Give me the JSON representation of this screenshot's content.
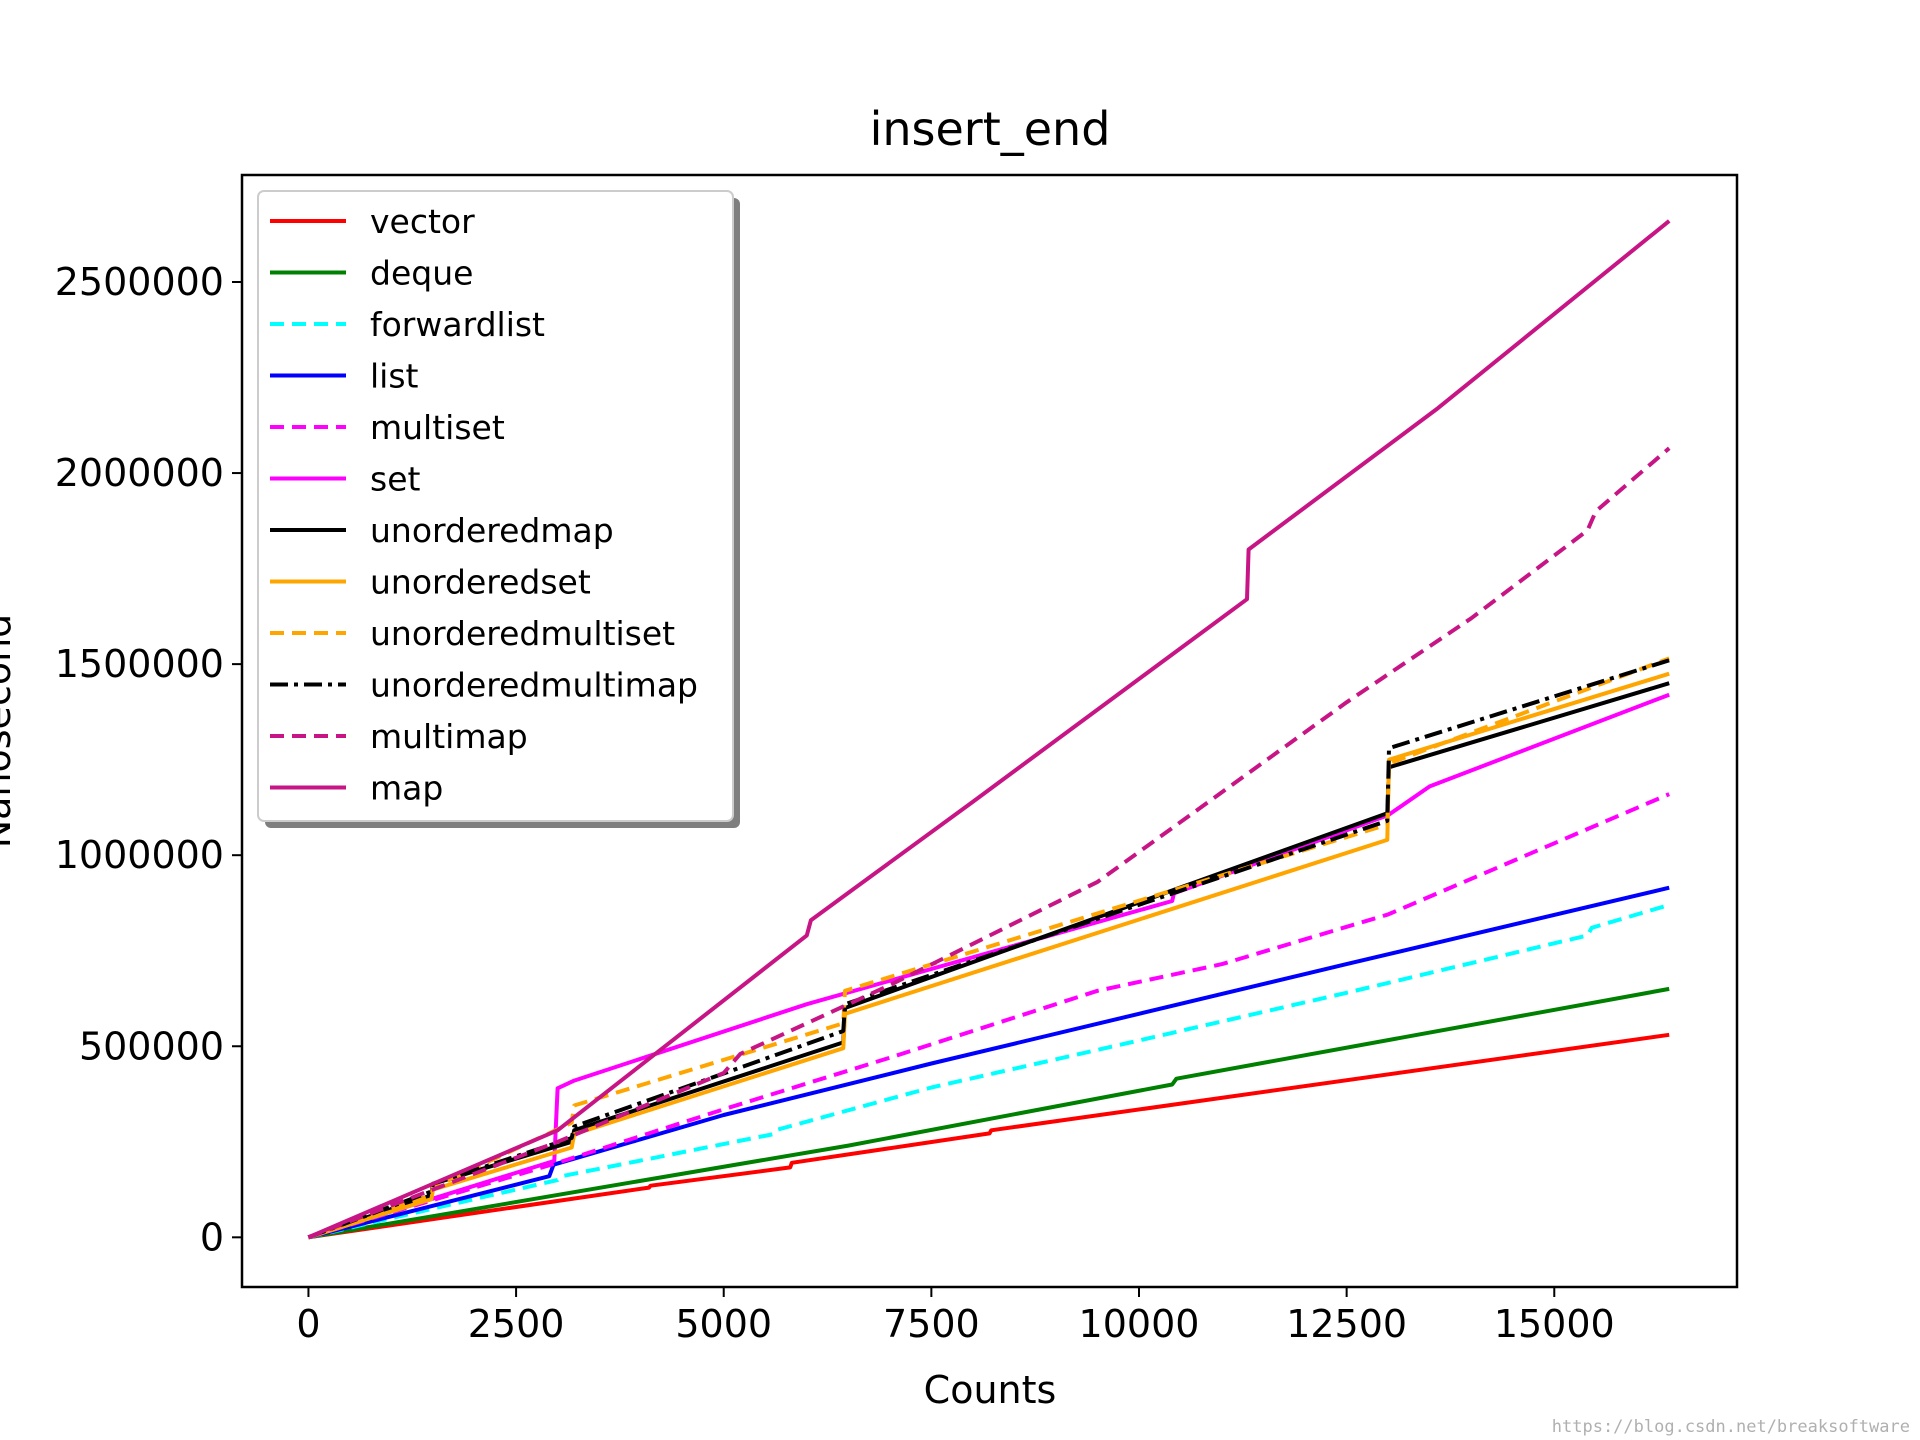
{
  "colors": {
    "background": "#ffffff",
    "axes": "#000000",
    "legend_frame": "#cccccc",
    "legend_shadow": "#7f7f7f",
    "watermark": "#b0b0b0"
  },
  "chart_data": {
    "type": "line",
    "title": "insert_end",
    "xlabel": "Counts",
    "ylabel": "Nanosecond",
    "xlim": [
      -800,
      17200
    ],
    "ylim": [
      -130000,
      2780000
    ],
    "xticks": [
      0,
      2500,
      5000,
      7500,
      10000,
      12500,
      15000
    ],
    "yticks": [
      0,
      500000,
      1000000,
      1500000,
      2000000,
      2500000
    ],
    "xtick_labels": [
      "0",
      "2500",
      "5000",
      "7500",
      "10000",
      "12500",
      "15000"
    ],
    "ytick_labels": [
      "0",
      "500000",
      "1000000",
      "1500000",
      "2000000",
      "2500000"
    ],
    "grid": false,
    "legend_position": "upper-left",
    "series": [
      {
        "name": "vector",
        "color": "#ff0000",
        "style": "solid",
        "x": [
          0,
          4100,
          4120,
          5800,
          5820,
          8200,
          8220,
          16384
        ],
        "y": [
          0,
          130000,
          135000,
          183000,
          195000,
          272000,
          280000,
          530000
        ]
      },
      {
        "name": "deque",
        "color": "#008000",
        "style": "solid",
        "x": [
          0,
          6500,
          10400,
          10450,
          16384
        ],
        "y": [
          0,
          240000,
          400000,
          415000,
          650000
        ]
      },
      {
        "name": "forwardlist",
        "color": "#00ffff",
        "style": "dashed",
        "x": [
          0,
          3000,
          3050,
          5600,
          5650,
          7500,
          10000,
          12500,
          15400,
          15450,
          16384
        ],
        "y": [
          0,
          150000,
          160000,
          270000,
          282000,
          392000,
          515000,
          640000,
          790000,
          810000,
          870000
        ]
      },
      {
        "name": "list",
        "color": "#0000ff",
        "style": "solid",
        "x": [
          0,
          2900,
          2950,
          5000,
          7500,
          10000,
          12500,
          16384
        ],
        "y": [
          0,
          160000,
          190000,
          320000,
          455000,
          585000,
          715000,
          915000
        ]
      },
      {
        "name": "multiset",
        "color": "#ff00ff",
        "style": "dashed",
        "x": [
          0,
          3000,
          5000,
          7000,
          9500,
          11000,
          13000,
          16384
        ],
        "y": [
          0,
          195000,
          335000,
          470000,
          645000,
          715000,
          845000,
          1160000
        ]
      },
      {
        "name": "set",
        "color": "#ff00ff",
        "style": "solid",
        "x": [
          0,
          2960,
          3000,
          3200,
          6000,
          10400,
          10420,
          13000,
          13500,
          16384
        ],
        "y": [
          0,
          200000,
          390000,
          410000,
          610000,
          880000,
          900000,
          1105000,
          1180000,
          1420000
        ]
      },
      {
        "name": "unorderedmap",
        "color": "#000000",
        "style": "solid",
        "x": [
          0,
          1480,
          1500,
          3170,
          3200,
          6440,
          6460,
          12990,
          13010,
          16384
        ],
        "y": [
          0,
          110000,
          140000,
          250000,
          280000,
          510000,
          600000,
          1110000,
          1230000,
          1450000
        ]
      },
      {
        "name": "unorderedset",
        "color": "#ffa500",
        "style": "solid",
        "x": [
          0,
          1480,
          1500,
          3170,
          3200,
          6440,
          6460,
          12990,
          13010,
          16384
        ],
        "y": [
          0,
          100000,
          125000,
          235000,
          270000,
          495000,
          585000,
          1040000,
          1250000,
          1475000
        ]
      },
      {
        "name": "unorderedmultiset",
        "color": "#ffa500",
        "style": "dashed",
        "x": [
          0,
          1480,
          1500,
          3170,
          3200,
          6440,
          6460,
          12990,
          13010,
          16384
        ],
        "y": [
          0,
          110000,
          130000,
          300000,
          345000,
          560000,
          645000,
          1080000,
          1240000,
          1515000
        ]
      },
      {
        "name": "unorderedmultimap",
        "color": "#000000",
        "style": "dashdot",
        "x": [
          0,
          1480,
          1500,
          3170,
          3200,
          6440,
          6460,
          12990,
          13010,
          16384
        ],
        "y": [
          0,
          120000,
          140000,
          260000,
          290000,
          540000,
          610000,
          1090000,
          1280000,
          1510000
        ]
      },
      {
        "name": "multimap",
        "color": "#c71585",
        "style": "dashed",
        "x": [
          0,
          3000,
          5000,
          5200,
          7000,
          9500,
          12500,
          14000,
          15400,
          15500,
          16384
        ],
        "y": [
          0,
          250000,
          430000,
          480000,
          660000,
          930000,
          1400000,
          1620000,
          1850000,
          1900000,
          2065000
        ]
      },
      {
        "name": "map",
        "color": "#c71585",
        "style": "solid",
        "x": [
          0,
          3000,
          6000,
          6050,
          8000,
          11300,
          11320,
          13600,
          16384
        ],
        "y": [
          0,
          280000,
          790000,
          830000,
          1140000,
          1670000,
          1800000,
          2170000,
          2660000
        ]
      }
    ]
  },
  "watermark": "https://blog.csdn.net/breaksoftware"
}
